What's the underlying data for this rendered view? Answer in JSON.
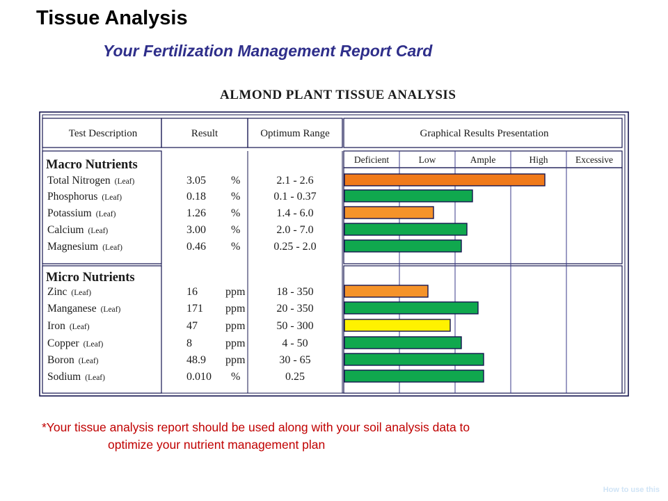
{
  "page": {
    "title": "Tissue Analysis",
    "subtitle": "Your Fertilization Management Report Card",
    "note_line1": "*Your tissue analysis report should be used along with your soil analysis data to",
    "note_line2": "optimize your nutrient management plan",
    "footer_link": "How to use this"
  },
  "report": {
    "title": "ALMOND PLANT TISSUE ANALYSIS",
    "headers": {
      "test": "Test Description",
      "result": "Result",
      "range": "Optimum Range",
      "graph": "Graphical Results Presentation"
    },
    "categories": [
      "Deficient",
      "Low",
      "Ample",
      "High",
      "Excessive"
    ],
    "sections": [
      {
        "name": "Macro Nutrients",
        "rows": [
          {
            "name": "Total Nitrogen",
            "tag": "(Leaf)",
            "result": "3.05",
            "unit": "%",
            "range": "2.1  -  2.6",
            "level": "High",
            "level_score": 3.6
          },
          {
            "name": "Phosphorus",
            "tag": "(Leaf)",
            "result": "0.18",
            "unit": "%",
            "range": "0.1  -  0.37",
            "level": "Ample",
            "level_score": 2.3
          },
          {
            "name": "Potassium",
            "tag": "(Leaf)",
            "result": "1.26",
            "unit": "%",
            "range": "1.4  -  6.0",
            "level": "Low",
            "level_score": 1.6
          },
          {
            "name": "Calcium",
            "tag": "(Leaf)",
            "result": "3.00",
            "unit": "%",
            "range": "2.0  -  7.0",
            "level": "Ample",
            "level_score": 2.2
          },
          {
            "name": "Magnesium",
            "tag": "(Leaf)",
            "result": "0.46",
            "unit": "%",
            "range": "0.25  -  2.0",
            "level": "Ample",
            "level_score": 2.1
          }
        ]
      },
      {
        "name": "Micro Nutrients",
        "rows": [
          {
            "name": "Zinc",
            "tag": "(Leaf)",
            "result": "16",
            "unit": "ppm",
            "range": "18  -  350",
            "level": "Low",
            "level_score": 1.5
          },
          {
            "name": "Manganese",
            "tag": "(Leaf)",
            "result": "171",
            "unit": "ppm",
            "range": "20  -  350",
            "level": "Ample",
            "level_score": 2.4
          },
          {
            "name": "Iron",
            "tag": "(Leaf)",
            "result": "47",
            "unit": "ppm",
            "range": "50  -  300",
            "level": "Low",
            "level_score": 1.9
          },
          {
            "name": "Copper",
            "tag": "(Leaf)",
            "result": "8",
            "unit": "ppm",
            "range": "4  -  50",
            "level": "Ample",
            "level_score": 2.1
          },
          {
            "name": "Boron",
            "tag": "(Leaf)",
            "result": "48.9",
            "unit": "ppm",
            "range": "30  -  65",
            "level": "Ample",
            "level_score": 2.5
          },
          {
            "name": "Sodium",
            "tag": "(Leaf)",
            "result": "0.010",
            "unit": "%",
            "range": "0.25",
            "level": "Ample",
            "level_score": 2.5
          }
        ]
      }
    ],
    "colors": {
      "Deficient": "#f07f1e",
      "Low": "#f5932a",
      "Ample": "#10a84e",
      "High": "#f07f1e",
      "Excessive": "#f07f1e",
      "iron_low": "#fff200",
      "nitrogen_high": "#f07a1a",
      "border": "#14144f",
      "grid": "#3a3a8a"
    }
  }
}
